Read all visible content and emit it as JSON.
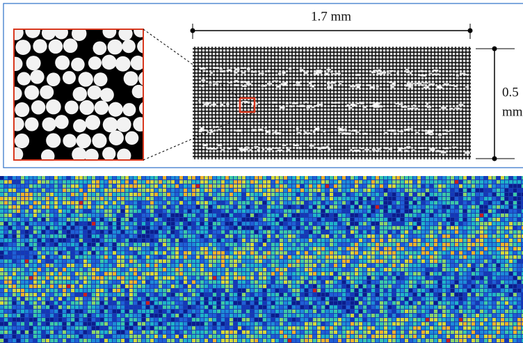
{
  "figure": {
    "width_label": "1.7 mm",
    "height_label_top": "0.5",
    "height_label_bottom": "mm"
  }
}
